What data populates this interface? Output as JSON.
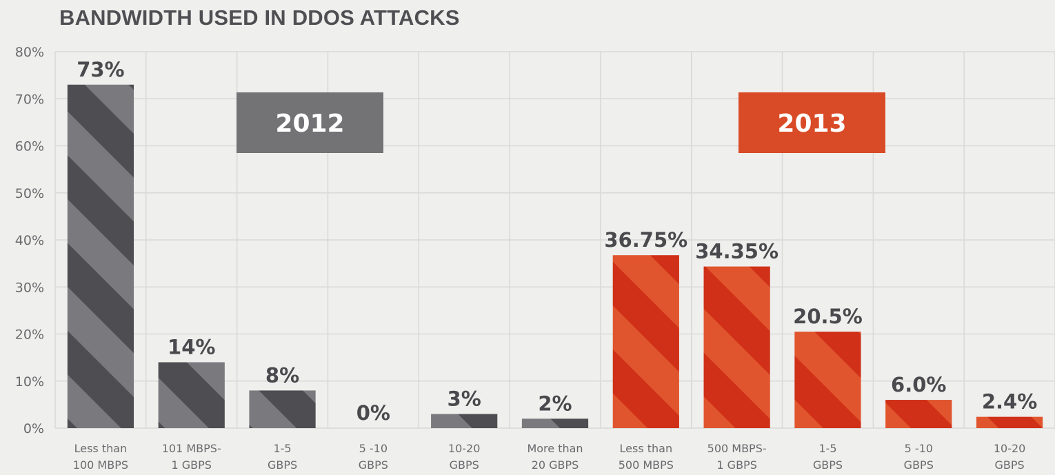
{
  "chart_data": {
    "type": "bar",
    "title": "BANDWIDTH USED IN DDOS ATTACKS",
    "xlabel": "",
    "ylabel": "",
    "ylim": [
      0,
      80
    ],
    "yticks": [
      "0%",
      "10%",
      "20%",
      "30%",
      "40%",
      "50%",
      "60%",
      "70%",
      "80%"
    ],
    "grid": true,
    "groups": [
      {
        "name": "2012",
        "color": "#4e4e52",
        "stripe_color": "#7a7a7e",
        "label_box_color": "#737376",
        "categories": [
          [
            "Less than",
            "100 MBPS"
          ],
          [
            "101 MBPS-",
            "1 GBPS"
          ],
          [
            "1-5",
            "GBPS"
          ],
          [
            "5 -10",
            "GBPS"
          ],
          [
            "10-20",
            "GBPS"
          ],
          [
            "More than",
            "20 GBPS"
          ]
        ],
        "values": [
          73,
          14,
          8,
          0,
          3,
          2
        ],
        "labels": [
          "73%",
          "14%",
          "8%",
          "0%",
          "3%",
          "2%"
        ]
      },
      {
        "name": "2013",
        "color": "#cf3017",
        "stripe_color": "#e0552d",
        "label_box_color": "#d94b26",
        "categories": [
          [
            "Less than",
            "500 MBPS"
          ],
          [
            "500 MBPS-",
            "1 GBPS"
          ],
          [
            "1-5",
            "GBPS"
          ],
          [
            "5 -10",
            "GBPS"
          ],
          [
            "10-20",
            "GBPS"
          ]
        ],
        "values": [
          36.75,
          34.35,
          20.5,
          6.0,
          2.4
        ],
        "labels": [
          "36.75%",
          "34.35%",
          "20.5%",
          "6.0%",
          "2.4%"
        ]
      }
    ]
  }
}
